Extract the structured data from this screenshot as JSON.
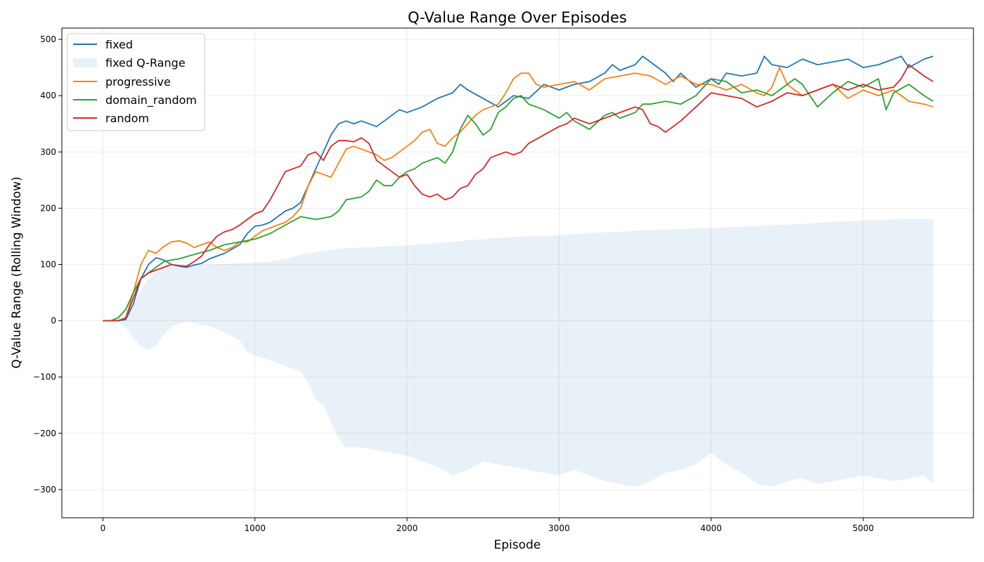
{
  "chart_data": {
    "type": "line",
    "title": "Q-Value Range Over Episodes",
    "xlabel": "Episode",
    "ylabel": "Q-Value Range (Rolling Window)",
    "xlim": [
      -270,
      5725
    ],
    "ylim": [
      -350,
      520
    ],
    "xticks": [
      0,
      1000,
      2000,
      3000,
      4000,
      5000
    ],
    "yticks": [
      -300,
      -200,
      -100,
      0,
      100,
      200,
      300,
      400,
      500
    ],
    "grid": true,
    "legend_position": "top-left",
    "legend": [
      "fixed",
      "fixed Q-Range",
      "progressive",
      "domain_random",
      "random"
    ],
    "band": {
      "name": "fixed Q-Range",
      "color": "#1f77b4",
      "opacity": 0.1,
      "x": [
        0,
        100,
        150,
        200,
        250,
        300,
        350,
        400,
        450,
        500,
        550,
        600,
        700,
        800,
        900,
        950,
        1000,
        1100,
        1200,
        1300,
        1350,
        1400,
        1450,
        1500,
        1550,
        1600,
        1700,
        1800,
        1900,
        2000,
        2100,
        2200,
        2300,
        2400,
        2500,
        2600,
        2700,
        2800,
        2900,
        3000,
        3100,
        3200,
        3300,
        3400,
        3500,
        3600,
        3700,
        3800,
        3900,
        4000,
        4100,
        4200,
        4300,
        4400,
        4500,
        4600,
        4700,
        4800,
        4900,
        5000,
        5100,
        5200,
        5300,
        5400,
        5460
      ],
      "upper": [
        0,
        2,
        8,
        28,
        55,
        75,
        88,
        95,
        97,
        98,
        98,
        99,
        100,
        101,
        102,
        103,
        104,
        105,
        110,
        117,
        120,
        122,
        124,
        126,
        128,
        129,
        130,
        131,
        133,
        134,
        136,
        138,
        140,
        143,
        145,
        147,
        149,
        150,
        151,
        152,
        154,
        156,
        157,
        158,
        160,
        161,
        162,
        163,
        164,
        165,
        166,
        167,
        168,
        170,
        171,
        172,
        174,
        176,
        177,
        178,
        179,
        180,
        181,
        181,
        180
      ],
      "lower": [
        0,
        -2,
        -12,
        -30,
        -45,
        -52,
        -45,
        -25,
        -10,
        -5,
        -2,
        -4,
        -10,
        -20,
        -35,
        -55,
        -62,
        -70,
        -80,
        -90,
        -110,
        -140,
        -150,
        -180,
        -210,
        -225,
        -225,
        -230,
        -235,
        -240,
        -250,
        -260,
        -275,
        -265,
        -250,
        -255,
        -260,
        -265,
        -270,
        -275,
        -265,
        -275,
        -285,
        -290,
        -295,
        -285,
        -270,
        -265,
        -255,
        -235,
        -255,
        -270,
        -290,
        -295,
        -285,
        -280,
        -290,
        -285,
        -280,
        -275,
        -280,
        -285,
        -280,
        -275,
        -290
      ]
    },
    "series": [
      {
        "name": "fixed",
        "color": "#1f77b4",
        "x": [
          0,
          100,
          150,
          200,
          250,
          300,
          350,
          400,
          450,
          500,
          550,
          600,
          650,
          700,
          800,
          900,
          950,
          1000,
          1050,
          1100,
          1150,
          1200,
          1250,
          1300,
          1350,
          1400,
          1450,
          1500,
          1550,
          1600,
          1650,
          1700,
          1750,
          1800,
          1850,
          1900,
          1950,
          2000,
          2100,
          2200,
          2300,
          2350,
          2400,
          2500,
          2600,
          2700,
          2800,
          2900,
          3000,
          3100,
          3200,
          3300,
          3350,
          3400,
          3500,
          3550,
          3600,
          3700,
          3750,
          3800,
          3900,
          4000,
          4050,
          4100,
          4200,
          4300,
          4350,
          4400,
          4500,
          4600,
          4700,
          4800,
          4900,
          5000,
          5100,
          5200,
          5250,
          5300,
          5400,
          5460
        ],
        "y": [
          0,
          0,
          2,
          30,
          75,
          100,
          112,
          108,
          100,
          97,
          95,
          99,
          102,
          110,
          120,
          135,
          155,
          168,
          170,
          175,
          185,
          195,
          200,
          210,
          240,
          270,
          300,
          330,
          350,
          355,
          350,
          355,
          350,
          345,
          355,
          365,
          375,
          370,
          380,
          395,
          405,
          420,
          410,
          395,
          380,
          400,
          395,
          420,
          410,
          420,
          425,
          440,
          455,
          445,
          455,
          470,
          460,
          440,
          425,
          440,
          415,
          430,
          420,
          440,
          435,
          440,
          470,
          455,
          450,
          465,
          455,
          460,
          465,
          450,
          455,
          465,
          470,
          450,
          465,
          470
        ]
      },
      {
        "name": "progressive",
        "color": "#ff7f0e",
        "x": [
          0,
          100,
          150,
          200,
          250,
          300,
          350,
          400,
          450,
          500,
          550,
          600,
          650,
          700,
          750,
          800,
          850,
          900,
          950,
          1000,
          1050,
          1100,
          1150,
          1200,
          1250,
          1300,
          1350,
          1400,
          1450,
          1500,
          1550,
          1600,
          1650,
          1700,
          1750,
          1800,
          1850,
          1900,
          1950,
          2000,
          2050,
          2100,
          2150,
          2200,
          2250,
          2300,
          2350,
          2400,
          2450,
          2500,
          2550,
          2600,
          2650,
          2700,
          2750,
          2800,
          2850,
          2900,
          3000,
          3100,
          3200,
          3300,
          3400,
          3500,
          3600,
          3700,
          3800,
          3900,
          4000,
          4100,
          4200,
          4300,
          4350,
          4400,
          4450,
          4500,
          4600,
          4700,
          4800,
          4900,
          5000,
          5100,
          5200,
          5300,
          5400,
          5460
        ],
        "y": [
          0,
          0,
          5,
          50,
          100,
          125,
          120,
          132,
          140,
          142,
          138,
          130,
          135,
          140,
          130,
          125,
          130,
          140,
          140,
          150,
          160,
          165,
          170,
          175,
          185,
          200,
          240,
          265,
          260,
          255,
          280,
          305,
          310,
          305,
          300,
          295,
          285,
          290,
          300,
          310,
          320,
          335,
          340,
          315,
          310,
          325,
          335,
          350,
          365,
          375,
          380,
          385,
          405,
          430,
          440,
          440,
          420,
          415,
          420,
          425,
          410,
          430,
          435,
          440,
          435,
          420,
          435,
          420,
          420,
          410,
          420,
          405,
          400,
          415,
          450,
          420,
          400,
          410,
          420,
          395,
          410,
          400,
          410,
          390,
          385,
          380
        ]
      },
      {
        "name": "domain_random",
        "color": "#2ca02c",
        "x": [
          0,
          50,
          100,
          150,
          200,
          250,
          300,
          350,
          400,
          450,
          500,
          600,
          700,
          800,
          900,
          1000,
          1100,
          1200,
          1300,
          1400,
          1500,
          1550,
          1600,
          1700,
          1750,
          1800,
          1850,
          1900,
          1950,
          2000,
          2050,
          2100,
          2150,
          2200,
          2250,
          2300,
          2350,
          2400,
          2450,
          2500,
          2550,
          2600,
          2650,
          2700,
          2750,
          2800,
          2900,
          3000,
          3050,
          3100,
          3200,
          3300,
          3350,
          3400,
          3500,
          3550,
          3600,
          3700,
          3800,
          3900,
          4000,
          4100,
          4200,
          4300,
          4400,
          4500,
          4550,
          4600,
          4700,
          4800,
          4900,
          5000,
          5100,
          5150,
          5200,
          5300,
          5400,
          5460
        ],
        "y": [
          0,
          0,
          5,
          20,
          50,
          75,
          85,
          95,
          105,
          108,
          110,
          118,
          125,
          135,
          140,
          145,
          155,
          170,
          185,
          180,
          185,
          195,
          215,
          220,
          230,
          250,
          240,
          240,
          255,
          265,
          270,
          280,
          285,
          290,
          280,
          300,
          340,
          365,
          350,
          330,
          340,
          370,
          380,
          395,
          400,
          385,
          375,
          360,
          370,
          355,
          340,
          365,
          370,
          360,
          370,
          385,
          385,
          390,
          385,
          400,
          430,
          425,
          405,
          410,
          400,
          420,
          430,
          420,
          380,
          405,
          425,
          415,
          430,
          375,
          405,
          420,
          400,
          390
        ]
      },
      {
        "name": "random",
        "color": "#d62728",
        "x": [
          0,
          100,
          150,
          200,
          250,
          300,
          350,
          400,
          450,
          500,
          550,
          600,
          650,
          700,
          750,
          800,
          850,
          900,
          950,
          1000,
          1050,
          1100,
          1150,
          1200,
          1250,
          1300,
          1350,
          1400,
          1450,
          1500,
          1550,
          1600,
          1650,
          1700,
          1750,
          1800,
          1850,
          1900,
          1950,
          2000,
          2050,
          2100,
          2150,
          2200,
          2250,
          2300,
          2350,
          2400,
          2450,
          2500,
          2550,
          2600,
          2650,
          2700,
          2750,
          2800,
          2900,
          3000,
          3050,
          3100,
          3200,
          3300,
          3400,
          3500,
          3550,
          3600,
          3650,
          3700,
          3800,
          3900,
          4000,
          4100,
          4200,
          4300,
          4400,
          4500,
          4600,
          4700,
          4800,
          4900,
          5000,
          5100,
          5200,
          5250,
          5300,
          5400,
          5460
        ],
        "y": [
          0,
          0,
          5,
          40,
          75,
          85,
          90,
          95,
          100,
          98,
          97,
          105,
          115,
          135,
          150,
          158,
          162,
          170,
          180,
          190,
          195,
          215,
          240,
          265,
          270,
          275,
          295,
          300,
          285,
          310,
          320,
          320,
          318,
          325,
          315,
          285,
          275,
          265,
          255,
          260,
          240,
          225,
          220,
          225,
          215,
          220,
          235,
          240,
          260,
          270,
          290,
          295,
          300,
          295,
          300,
          315,
          330,
          345,
          350,
          360,
          350,
          360,
          370,
          380,
          375,
          350,
          345,
          335,
          355,
          380,
          405,
          400,
          395,
          380,
          390,
          405,
          400,
          410,
          420,
          410,
          420,
          410,
          415,
          430,
          455,
          435,
          425
        ]
      }
    ]
  }
}
